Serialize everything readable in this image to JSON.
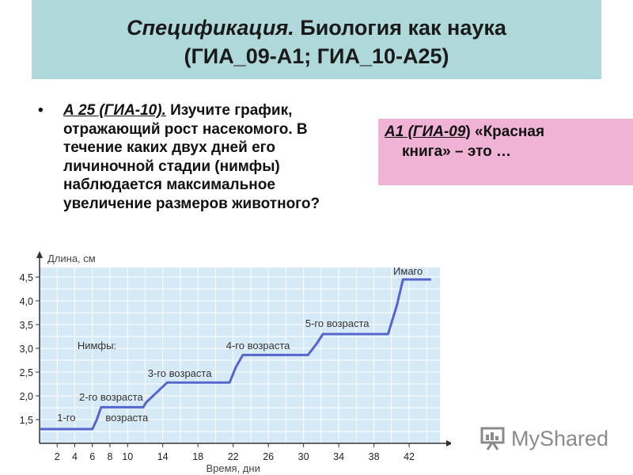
{
  "header": {
    "title_em": "Спецификация.",
    "title_rest": " Биология как наука",
    "subtitle": "(ГИА_09-А1; ГИА_10-А25)"
  },
  "question": {
    "bullet": "•",
    "ref": "А 25 (ГИА-10).",
    "text": " Изучите график, отражающий рост насекомого. В течение каких двух дней его личиночной стадии (нимфы) наблюдается максимальное увеличение размеров животного?"
  },
  "side_question": {
    "ref": "А1 (ГИА-09",
    "text_a": ") «Красная",
    "text_b": "книга» – это …"
  },
  "logo": {
    "text": "MyShared",
    "icon": "presentation-board-icon"
  },
  "chart_data": {
    "type": "line",
    "ylabel": "Длина, см",
    "xlabel": "Время, дни",
    "xlim": [
      0,
      45.5
    ],
    "ylim": [
      1,
      4.7
    ],
    "x_ticks": [
      2,
      4,
      6,
      8,
      10,
      14,
      18,
      22,
      26,
      30,
      34,
      38,
      42
    ],
    "y_ticks": [
      1.5,
      2.0,
      2.5,
      3.0,
      3.5,
      4.0,
      4.5
    ],
    "y_tick_labels": [
      "1,5",
      "2,0",
      "2,5",
      "3,0",
      "3,5",
      "4,0",
      "4,5"
    ],
    "grid": true,
    "colors": {
      "background": "#d5e9f7",
      "grid": "#ffffff",
      "line": "#5566cc"
    },
    "series": [
      {
        "x": [
          0,
          6,
          6.5,
          7,
          11.8,
          12.1,
          14.5,
          14.8,
          21.6,
          22.3,
          23.1,
          30.5,
          31.5,
          32.2,
          39.6,
          40.6,
          41.3,
          44.5
        ],
        "y": [
          1.3,
          1.3,
          1.5,
          1.76,
          1.76,
          1.86,
          2.28,
          2.28,
          2.28,
          2.6,
          2.86,
          2.86,
          3.1,
          3.3,
          3.3,
          3.9,
          4.45,
          4.45
        ]
      }
    ],
    "annotations": [
      {
        "text": "Нимфы:",
        "x": 4.3,
        "y": 2.98
      },
      {
        "text": "1-го",
        "x": 2,
        "y": 1.47
      },
      {
        "text": "возраста",
        "x": 7.5,
        "y": 1.47
      },
      {
        "text": "2-го возраста",
        "x": 4.5,
        "y": 1.9
      },
      {
        "text": "3-го возраста",
        "x": 12.3,
        "y": 2.4
      },
      {
        "text": "4-го возраста",
        "x": 21.2,
        "y": 2.98
      },
      {
        "text": "5-го возраста",
        "x": 30.2,
        "y": 3.45
      },
      {
        "text": "Имаго",
        "x": 40.2,
        "y": 4.55
      }
    ]
  }
}
